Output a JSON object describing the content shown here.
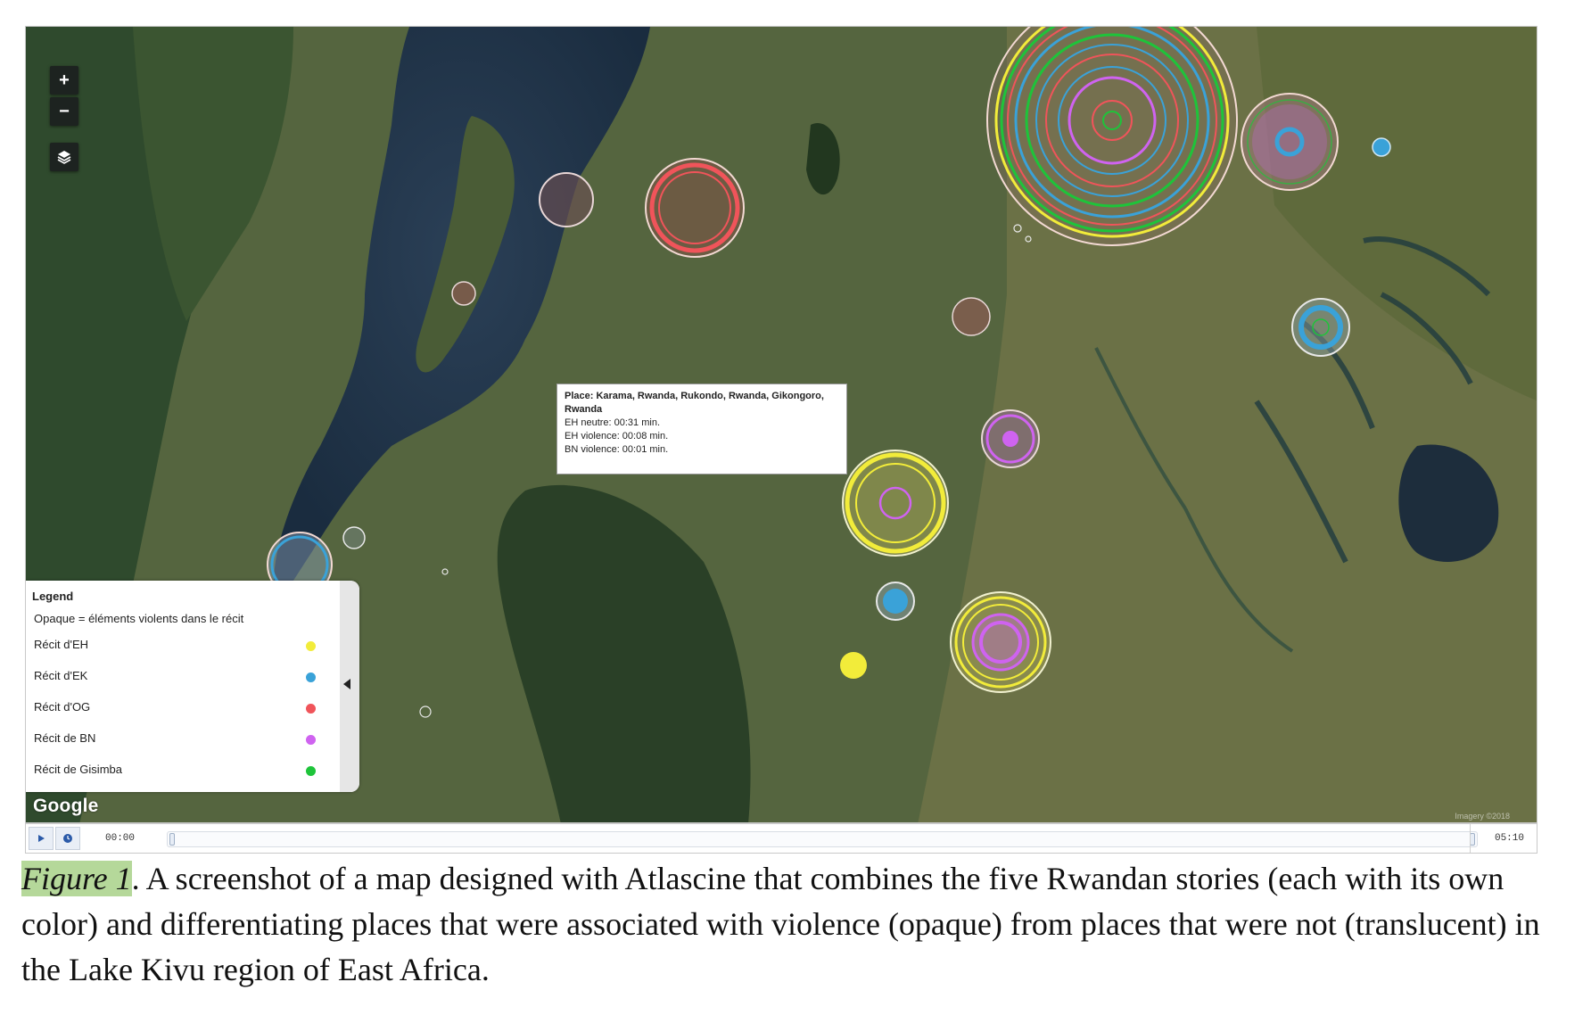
{
  "map": {
    "controls": {
      "zoom_in": "+",
      "zoom_out": "−"
    },
    "tooltip": {
      "place": "Place: Karama, Rwanda, Rukondo, Rwanda, Gikongoro, Rwanda",
      "lines": [
        "EH neutre: 00:31 min.",
        "EH violence: 00:08 min.",
        "BN violence: 00:01 min."
      ]
    },
    "legend": {
      "title": "Legend",
      "note": "Opaque = éléments violents dans le récit",
      "items": [
        {
          "label": "Récit d'EH",
          "color": "#f2ec3a"
        },
        {
          "label": "Récit d'EK",
          "color": "#3aa2d8"
        },
        {
          "label": "Récit d'OG",
          "color": "#f0545a"
        },
        {
          "label": "Récit de BN",
          "color": "#cf63f0"
        },
        {
          "label": "Récit de Gisimba",
          "color": "#1ec43a"
        }
      ]
    },
    "google_logo": "Google",
    "attribution": "Imagery ©2018"
  },
  "timeline": {
    "start_time": "00:00",
    "end_time": "05:10",
    "progress": 0.0
  },
  "caption": {
    "figure_label": "Figure 1",
    "text": ". A screenshot of a map designed with Atlascine that combines the five Rwandan stories (each with its own color) and differentiating places that were associated with violence (opaque) from places that were not (translucent) in the Lake Kivu region of East Africa."
  }
}
